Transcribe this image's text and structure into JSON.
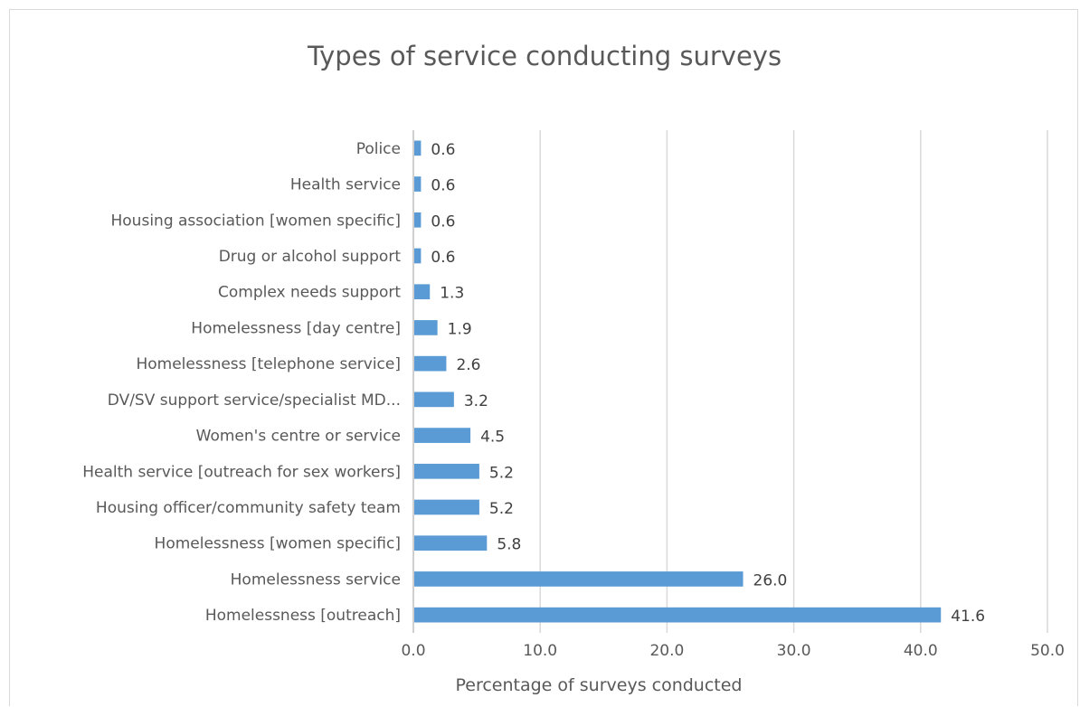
{
  "chart_data": {
    "type": "bar",
    "orientation": "horizontal",
    "title": "Types of service conducting surveys",
    "xlabel": "Percentage of surveys conducted",
    "ylabel": "",
    "xlim": [
      0,
      50
    ],
    "x_ticks": [
      "0.0",
      "10.0",
      "20.0",
      "30.0",
      "40.0",
      "50.0"
    ],
    "grid": "vertical",
    "legend": "none",
    "bar_color": "#5b9bd5",
    "categories": [
      "Police",
      "Health service",
      "Housing association [women specific]",
      "Drug or alcohol support ",
      "Complex needs support",
      "Homelessness [day centre]",
      "Homelessness [telephone service]",
      "DV/SV support service/specialist MD...",
      "Women's centre or service",
      "Health service [outreach for sex workers]",
      "Housing officer/community safety team",
      "Homelessness [women specific]",
      "Homelessness service",
      "Homelessness [outreach]"
    ],
    "values": [
      0.6,
      0.6,
      0.6,
      0.6,
      1.3,
      1.9,
      2.6,
      3.2,
      4.5,
      5.2,
      5.2,
      5.8,
      26.0,
      41.6
    ],
    "data_labels": [
      "0.6",
      "0.6",
      "0.6",
      "0.6",
      "1.3",
      "1.9",
      "2.6",
      "3.2",
      "4.5",
      "5.2",
      "5.2",
      "5.8",
      "26.0",
      "41.6"
    ]
  }
}
